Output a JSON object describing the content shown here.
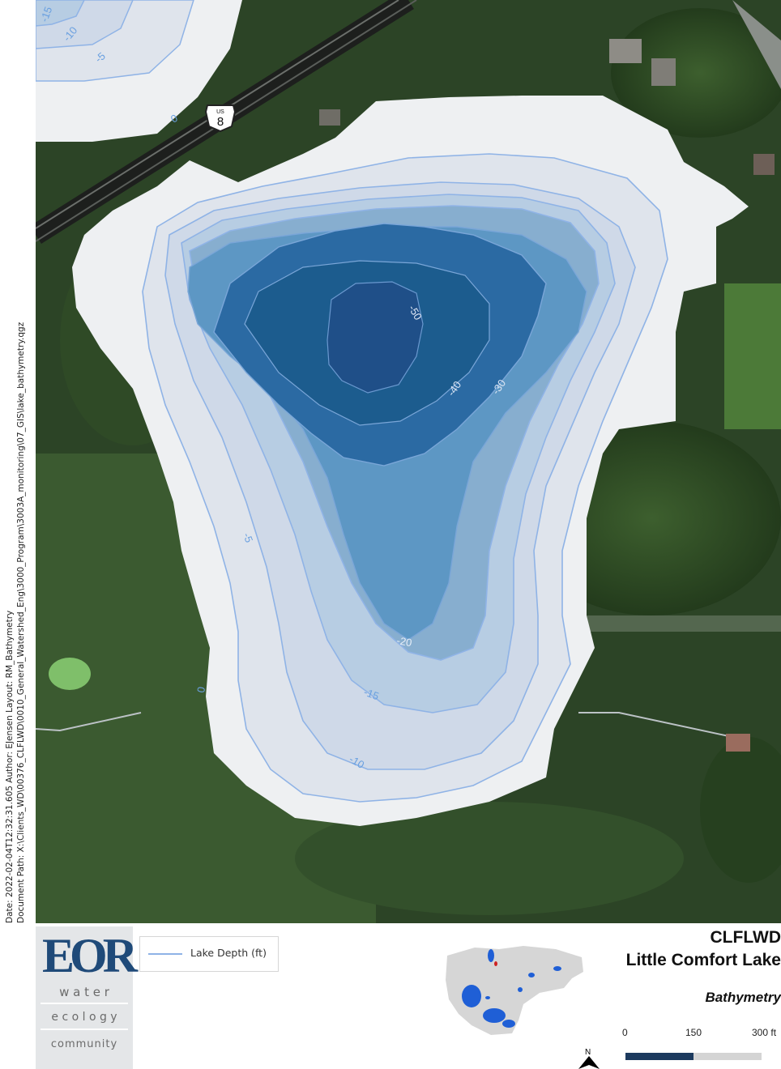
{
  "side_text": {
    "date_line": "Date: 2022-02-04T12:32:31.605  Author: EJensen  Layout: RM_Bathymetry",
    "path_line": "Document Path: X:\\Clients_WD\\00376_CLFLWD\\0010_General_Watershed_Eng\\3000_Program\\3003A_monitoring\\07_GIS\\lake_bathymetry.qgz"
  },
  "map": {
    "highway_shield": {
      "top": "US",
      "number": "8"
    },
    "contour_labels": [
      "-15",
      "-10",
      "-5",
      "0",
      "-50",
      "-40",
      "-30",
      "-5",
      "-20",
      "0",
      "-15",
      "-10"
    ],
    "colors": {
      "depth_0": "#eef0f2",
      "depth_5": "#dfe4ec",
      "depth_10": "#cfd9e8",
      "depth_15": "#b7cde3",
      "depth_20": "#87aecf",
      "depth_30": "#5d97c4",
      "depth_40": "#2b6aa3",
      "depth_50": "#1c5c8e",
      "depth_deep": "#1f4f88",
      "contour_line": "#8fb3e6",
      "label": "#6aa0e0"
    }
  },
  "legend": {
    "label": "Lake Depth (ft)",
    "line_color": "#8fb3e6"
  },
  "logo": {
    "mark": "EOR",
    "words": [
      "w a t e r",
      "e c o l o g y",
      "community"
    ]
  },
  "title_block": {
    "line1": "CLFLWD",
    "line2": "Little Comfort Lake",
    "subtitle": "Bathymetry"
  },
  "scale_bar": {
    "north": "N",
    "labels": [
      "0",
      "150",
      "300 ft"
    ]
  }
}
